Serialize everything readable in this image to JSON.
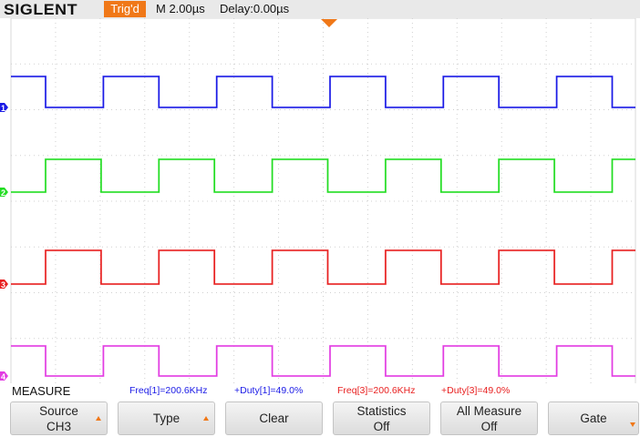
{
  "header": {
    "brand": "SIGLENT",
    "trigger_status": "Trig'd",
    "timebase": "M 2.00µs",
    "delay": "Delay:0.00µs"
  },
  "channels": [
    {
      "id": "1",
      "color": "#1a1ae6",
      "state": "high"
    },
    {
      "id": "2",
      "color": "#22dd22",
      "state": "low"
    },
    {
      "id": "3",
      "color": "#e82020",
      "state": "low"
    },
    {
      "id": "4",
      "color": "#e23ce2",
      "state": "high"
    }
  ],
  "measure": {
    "title": "MEASURE",
    "values": [
      {
        "text": "Freq[1]=200.6KHz",
        "color": "#1a1ae6"
      },
      {
        "text": "+Duty[1]=49.0%",
        "color": "#1a1ae6"
      },
      {
        "text": "Freq[3]=200.6KHz",
        "color": "#e82020"
      },
      {
        "text": "+Duty[3]=49.0%",
        "color": "#e82020"
      }
    ]
  },
  "softkeys": [
    {
      "line1": "Source",
      "line2": "CH3"
    },
    {
      "line1": "Type",
      "line2": ""
    },
    {
      "line1": "Clear",
      "line2": ""
    },
    {
      "line1": "Statistics",
      "line2": "Off"
    },
    {
      "line1": "All Measure",
      "line2": "Off"
    },
    {
      "line1": "Gate",
      "line2": ""
    }
  ]
}
